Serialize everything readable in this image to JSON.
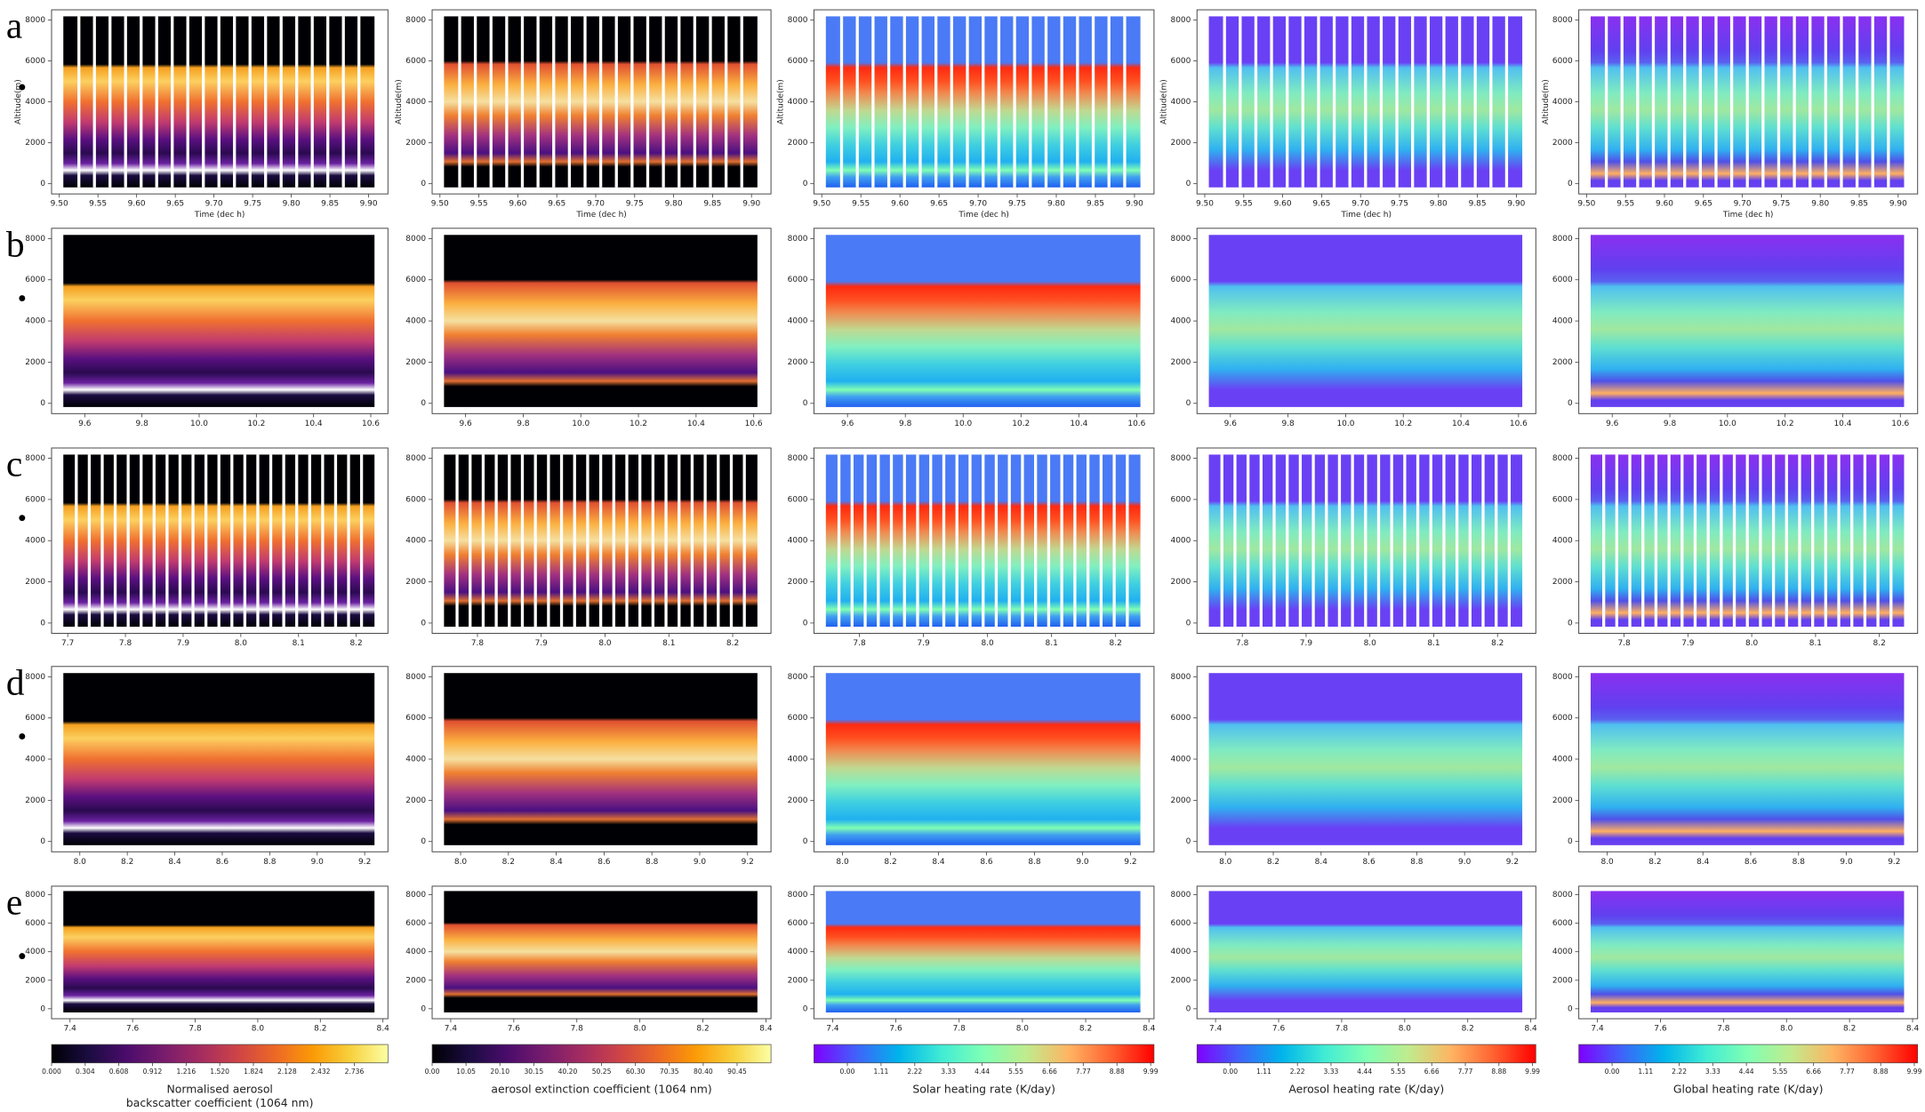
{
  "chart_data": [
    {
      "type": "heatmap",
      "panel_label": "a",
      "colormap": "inferno",
      "xlabel": "Time (dec h)",
      "ylabel": "Altitude(m)",
      "xlim": [
        9.49,
        9.925
      ],
      "xticks": [
        {
          "value": 9.5,
          "label": "9.50"
        },
        9.55,
        {
          "value": 9.6,
          "label": "9.60"
        },
        9.65,
        {
          "value": 9.7,
          "label": "9.70"
        },
        9.75,
        {
          "value": 9.8,
          "label": "9.80"
        },
        9.85,
        {
          "value": 9.9,
          "label": "9.90"
        }
      ],
      "ylim": [
        -500,
        8500
      ],
      "yticks": [
        0,
        2000,
        4000,
        6000,
        8000
      ]
    },
    {
      "type": "heatmap",
      "colormap": "inferno",
      "xlabel": "Time (dec h)",
      "ylabel": "Altitude(m)",
      "xlim": [
        9.49,
        9.925
      ],
      "xticks": [
        {
          "value": 9.5,
          "label": "9.50"
        },
        9.55,
        {
          "value": 9.6,
          "label": "9.60"
        },
        9.65,
        {
          "value": 9.7,
          "label": "9.70"
        },
        9.75,
        {
          "value": 9.8,
          "label": "9.80"
        },
        9.85,
        {
          "value": 9.9,
          "label": "9.90"
        }
      ],
      "ylim": [
        -500,
        8500
      ],
      "yticks": [
        0,
        2000,
        4000,
        6000,
        8000
      ]
    },
    {
      "type": "heatmap",
      "colormap": "rainbow",
      "xlabel": "Time (dec h)",
      "ylabel": "Altitude(m)",
      "xlim": [
        9.49,
        9.925
      ],
      "xticks": [
        {
          "value": 9.5,
          "label": "9.50"
        },
        9.55,
        {
          "value": 9.6,
          "label": "9.60"
        },
        9.65,
        {
          "value": 9.7,
          "label": "9.70"
        },
        9.75,
        {
          "value": 9.8,
          "label": "9.80"
        },
        9.85,
        {
          "value": 9.9,
          "label": "9.90"
        }
      ],
      "ylim": [
        -500,
        8500
      ],
      "yticks": [
        0,
        2000,
        4000,
        6000,
        8000
      ]
    },
    {
      "type": "heatmap",
      "colormap": "rainbow",
      "xlabel": "Time (dec h)",
      "ylabel": "Altitude(m)",
      "xlim": [
        9.49,
        9.925
      ],
      "xticks": [
        {
          "value": 9.5,
          "label": "9.50"
        },
        9.55,
        {
          "value": 9.6,
          "label": "9.60"
        },
        9.65,
        {
          "value": 9.7,
          "label": "9.70"
        },
        9.75,
        {
          "value": 9.8,
          "label": "9.80"
        },
        9.85,
        {
          "value": 9.9,
          "label": "9.90"
        }
      ],
      "ylim": [
        -500,
        8500
      ],
      "yticks": [
        0,
        2000,
        4000,
        6000,
        8000
      ]
    },
    {
      "type": "heatmap",
      "colormap": "rainbow",
      "xlabel": "Time (dec h)",
      "ylabel": "Altitude(m)",
      "xlim": [
        9.49,
        9.925
      ],
      "xticks": [
        {
          "value": 9.5,
          "label": "9.50"
        },
        9.55,
        {
          "value": 9.6,
          "label": "9.60"
        },
        9.65,
        {
          "value": 9.7,
          "label": "9.70"
        },
        9.75,
        {
          "value": 9.8,
          "label": "9.80"
        },
        9.85,
        {
          "value": 9.9,
          "label": "9.90"
        }
      ],
      "ylim": [
        -500,
        8500
      ],
      "yticks": [
        0,
        2000,
        4000,
        6000,
        8000
      ]
    },
    {
      "type": "heatmap",
      "panel_label": "b",
      "colormap": "inferno",
      "xlim": [
        9.484,
        10.66
      ],
      "xticks": [
        9.6,
        9.8,
        {
          "value": 10,
          "label": "10.0"
        },
        10.2,
        10.4,
        10.6
      ],
      "ylim": [
        -500,
        8500
      ],
      "yticks": [
        0,
        2000,
        4000,
        6000,
        8000
      ]
    },
    {
      "type": "heatmap",
      "colormap": "inferno",
      "xlim": [
        9.484,
        10.66
      ],
      "xticks": [
        9.6,
        9.8,
        {
          "value": 10,
          "label": "10.0"
        },
        10.2,
        10.4,
        10.6
      ],
      "ylim": [
        -500,
        8500
      ],
      "yticks": [
        0,
        2000,
        4000,
        6000,
        8000
      ]
    },
    {
      "type": "heatmap",
      "colormap": "rainbow",
      "xlim": [
        9.484,
        10.66
      ],
      "xticks": [
        9.6,
        9.8,
        {
          "value": 10,
          "label": "10.0"
        },
        10.2,
        10.4,
        10.6
      ],
      "ylim": [
        -500,
        8500
      ],
      "yticks": [
        0,
        2000,
        4000,
        6000,
        8000
      ]
    },
    {
      "type": "heatmap",
      "colormap": "rainbow",
      "xlim": [
        9.484,
        10.66
      ],
      "xticks": [
        9.6,
        9.8,
        {
          "value": 10,
          "label": "10.0"
        },
        10.2,
        10.4,
        10.6
      ],
      "ylim": [
        -500,
        8500
      ],
      "yticks": [
        0,
        2000,
        4000,
        6000,
        8000
      ]
    },
    {
      "type": "heatmap",
      "colormap": "rainbow",
      "xlim": [
        9.484,
        10.66
      ],
      "xticks": [
        9.6,
        9.8,
        {
          "value": 10,
          "label": "10.0"
        },
        10.2,
        10.4,
        10.6
      ],
      "ylim": [
        -500,
        8500
      ],
      "yticks": [
        0,
        2000,
        4000,
        6000,
        8000
      ]
    },
    {
      "type": "heatmap",
      "panel_label": "c",
      "colormap": "inferno",
      "xlim": [
        7.672,
        8.255
      ],
      "xticks": [
        7.7,
        7.8,
        7.9,
        {
          "value": 8,
          "label": "8.0"
        },
        8.1,
        8.2
      ],
      "ylim": [
        -500,
        8500
      ],
      "yticks": [
        0,
        2000,
        4000,
        6000,
        8000
      ]
    },
    {
      "type": "heatmap",
      "colormap": "inferno",
      "xlim": [
        7.729,
        8.26
      ],
      "xticks": [
        7.8,
        7.9,
        {
          "value": 8,
          "label": "8.0"
        },
        8.1,
        8.2
      ],
      "ylim": [
        -500,
        8500
      ],
      "yticks": [
        0,
        2000,
        4000,
        6000,
        8000
      ]
    },
    {
      "type": "heatmap",
      "colormap": "rainbow",
      "xlim": [
        7.729,
        8.26
      ],
      "xticks": [
        7.8,
        7.9,
        {
          "value": 8,
          "label": "8.0"
        },
        8.1,
        8.2
      ],
      "ylim": [
        -500,
        8500
      ],
      "yticks": [
        0,
        2000,
        4000,
        6000,
        8000
      ]
    },
    {
      "type": "heatmap",
      "colormap": "rainbow",
      "xlim": [
        7.729,
        8.26
      ],
      "xticks": [
        7.8,
        7.9,
        {
          "value": 8,
          "label": "8.0"
        },
        8.1,
        8.2
      ],
      "ylim": [
        -500,
        8500
      ],
      "yticks": [
        0,
        2000,
        4000,
        6000,
        8000
      ]
    },
    {
      "type": "heatmap",
      "colormap": "rainbow",
      "xlim": [
        7.729,
        8.26
      ],
      "xticks": [
        7.8,
        7.9,
        {
          "value": 8,
          "label": "8.0"
        },
        8.1,
        8.2
      ],
      "ylim": [
        -500,
        8500
      ],
      "yticks": [
        0,
        2000,
        4000,
        6000,
        8000
      ]
    },
    {
      "type": "heatmap",
      "panel_label": "d",
      "colormap": "inferno",
      "xlim": [
        7.881,
        9.298
      ],
      "xticks": [
        {
          "value": 8,
          "label": "8.0"
        },
        8.2,
        8.4,
        8.6,
        8.8,
        {
          "value": 9,
          "label": "9.0"
        },
        9.2
      ],
      "ylim": [
        -500,
        8500
      ],
      "yticks": [
        0,
        2000,
        4000,
        6000,
        8000
      ]
    },
    {
      "type": "heatmap",
      "colormap": "inferno",
      "xlim": [
        7.881,
        9.298
      ],
      "xticks": [
        {
          "value": 8,
          "label": "8.0"
        },
        8.2,
        8.4,
        8.6,
        8.8,
        {
          "value": 9,
          "label": "9.0"
        },
        9.2
      ],
      "ylim": [
        -500,
        8500
      ],
      "yticks": [
        0,
        2000,
        4000,
        6000,
        8000
      ]
    },
    {
      "type": "heatmap",
      "colormap": "rainbow",
      "xlim": [
        7.881,
        9.298
      ],
      "xticks": [
        {
          "value": 8,
          "label": "8.0"
        },
        8.2,
        8.4,
        8.6,
        8.8,
        {
          "value": 9,
          "label": "9.0"
        },
        9.2
      ],
      "ylim": [
        -500,
        8500
      ],
      "yticks": [
        0,
        2000,
        4000,
        6000,
        8000
      ]
    },
    {
      "type": "heatmap",
      "colormap": "rainbow",
      "xlim": [
        7.881,
        9.298
      ],
      "xticks": [
        {
          "value": 8,
          "label": "8.0"
        },
        8.2,
        8.4,
        8.6,
        8.8,
        {
          "value": 9,
          "label": "9.0"
        },
        9.2
      ],
      "ylim": [
        -500,
        8500
      ],
      "yticks": [
        0,
        2000,
        4000,
        6000,
        8000
      ]
    },
    {
      "type": "heatmap",
      "colormap": "rainbow",
      "xlim": [
        7.881,
        9.298
      ],
      "xticks": [
        {
          "value": 8,
          "label": "8.0"
        },
        8.2,
        8.4,
        8.6,
        8.8,
        {
          "value": 9,
          "label": "9.0"
        },
        9.2
      ],
      "ylim": [
        -500,
        8500
      ],
      "yticks": [
        0,
        2000,
        4000,
        6000,
        8000
      ]
    },
    {
      "type": "heatmap",
      "panel_label": "e",
      "colormap": "inferno",
      "xlim": [
        7.341,
        8.416
      ],
      "xticks": [
        7.4,
        7.6,
        7.8,
        {
          "value": 8,
          "label": "8.0"
        },
        8.2,
        8.4
      ],
      "ylim": [
        -700,
        8600
      ],
      "yticks": [
        0,
        2000,
        4000,
        6000,
        8000
      ]
    },
    {
      "type": "heatmap",
      "colormap": "inferno",
      "xlim": [
        7.341,
        8.416
      ],
      "xticks": [
        7.4,
        7.6,
        7.8,
        {
          "value": 8,
          "label": "8.0"
        },
        8.2,
        8.4
      ],
      "ylim": [
        -700,
        8600
      ],
      "yticks": [
        0,
        2000,
        4000,
        6000,
        8000
      ]
    },
    {
      "type": "heatmap",
      "colormap": "rainbow",
      "xlim": [
        7.341,
        8.416
      ],
      "xticks": [
        7.4,
        7.6,
        7.8,
        {
          "value": 8,
          "label": "8.0"
        },
        8.2,
        8.4
      ],
      "ylim": [
        -700,
        8600
      ],
      "yticks": [
        0,
        2000,
        4000,
        6000,
        8000
      ]
    },
    {
      "type": "heatmap",
      "colormap": "rainbow",
      "xlim": [
        7.341,
        8.416
      ],
      "xticks": [
        7.4,
        7.6,
        7.8,
        {
          "value": 8,
          "label": "8.0"
        },
        8.2,
        8.4
      ],
      "ylim": [
        -700,
        8600
      ],
      "yticks": [
        0,
        2000,
        4000,
        6000,
        8000
      ]
    },
    {
      "type": "heatmap",
      "colormap": "rainbow",
      "xlim": [
        7.341,
        8.416
      ],
      "xticks": [
        7.4,
        7.6,
        7.8,
        {
          "value": 8,
          "label": "8.0"
        },
        8.2,
        8.4
      ],
      "ylim": [
        -700,
        8600
      ],
      "yticks": [
        0,
        2000,
        4000,
        6000,
        8000
      ]
    }
  ],
  "colorbars": [
    {
      "colormap": "inferno",
      "colors": [
        "#000004",
        "#1b0c41",
        "#4a0c6b",
        "#781c6d",
        "#a52c60",
        "#cf4446",
        "#ed6925",
        "#fb9b06",
        "#f7d13d",
        "#fcffa4"
      ],
      "clim": [
        0,
        3.04
      ],
      "ticks": [
        {
          "value": 0,
          "label": "0.000"
        },
        0.304,
        0.608,
        0.912,
        1.216,
        {
          "value": 1.52,
          "label": "1.520"
        },
        1.824,
        2.128,
        2.432,
        2.736
      ],
      "label_lines": [
        "Normalised aerosol",
        "backscatter coefficient (1064 nm)"
      ]
    },
    {
      "colormap": "inferno",
      "colors": [
        "#000004",
        "#1b0c41",
        "#4a0c6b",
        "#781c6d",
        "#a52c60",
        "#cf4446",
        "#ed6925",
        "#fb9b06",
        "#f7d13d",
        "#fcffa4"
      ],
      "clim": [
        0,
        100.5
      ],
      "ticks": [
        {
          "value": 0,
          "label": "0.00"
        },
        10.05,
        {
          "value": 20.1,
          "label": "20.10"
        },
        30.15,
        {
          "value": 40.2,
          "label": "40.20"
        },
        50.25,
        {
          "value": 60.3,
          "label": "60.30"
        },
        70.35,
        {
          "value": 80.4,
          "label": "80.40"
        },
        90.45
      ],
      "label_lines": [
        "aerosol extinction coefficient (1064 nm)"
      ]
    },
    {
      "colormap": "rainbow",
      "colors": [
        "#8000ff",
        "#4062fa",
        "#00b4eb",
        "#40ecd4",
        "#80ffb4",
        "#c0eb8d",
        "#ffb462",
        "#ff6231",
        "#ff0000"
      ],
      "clim": [
        -1.1,
        10.1
      ],
      "ticks": [
        {
          "value": 0,
          "label": "0.00"
        },
        1.11,
        2.22,
        3.33,
        4.44,
        5.55,
        6.66,
        7.77,
        8.88,
        9.99
      ],
      "label_lines": [
        "Solar heating rate (K/day)"
      ]
    },
    {
      "colormap": "rainbow",
      "colors": [
        "#8000ff",
        "#4062fa",
        "#00b4eb",
        "#40ecd4",
        "#80ffb4",
        "#c0eb8d",
        "#ffb462",
        "#ff6231",
        "#ff0000"
      ],
      "clim": [
        -1.1,
        10.1
      ],
      "ticks": [
        {
          "value": 0,
          "label": "0.00"
        },
        1.11,
        2.22,
        3.33,
        4.44,
        5.55,
        6.66,
        7.77,
        8.88,
        9.99
      ],
      "label_lines": [
        "Aerosol heating rate (K/day)"
      ]
    },
    {
      "colormap": "rainbow",
      "colors": [
        "#8000ff",
        "#4062fa",
        "#00b4eb",
        "#40ecd4",
        "#80ffb4",
        "#c0eb8d",
        "#ffb462",
        "#ff6231",
        "#ff0000"
      ],
      "clim": [
        -1.1,
        10.1
      ],
      "ticks": [
        {
          "value": 0,
          "label": "0.00"
        },
        1.11,
        2.22,
        3.33,
        4.44,
        5.55,
        6.66,
        7.77,
        8.88,
        9.99
      ],
      "label_lines": [
        "Global heating rate (K/day)"
      ]
    }
  ]
}
